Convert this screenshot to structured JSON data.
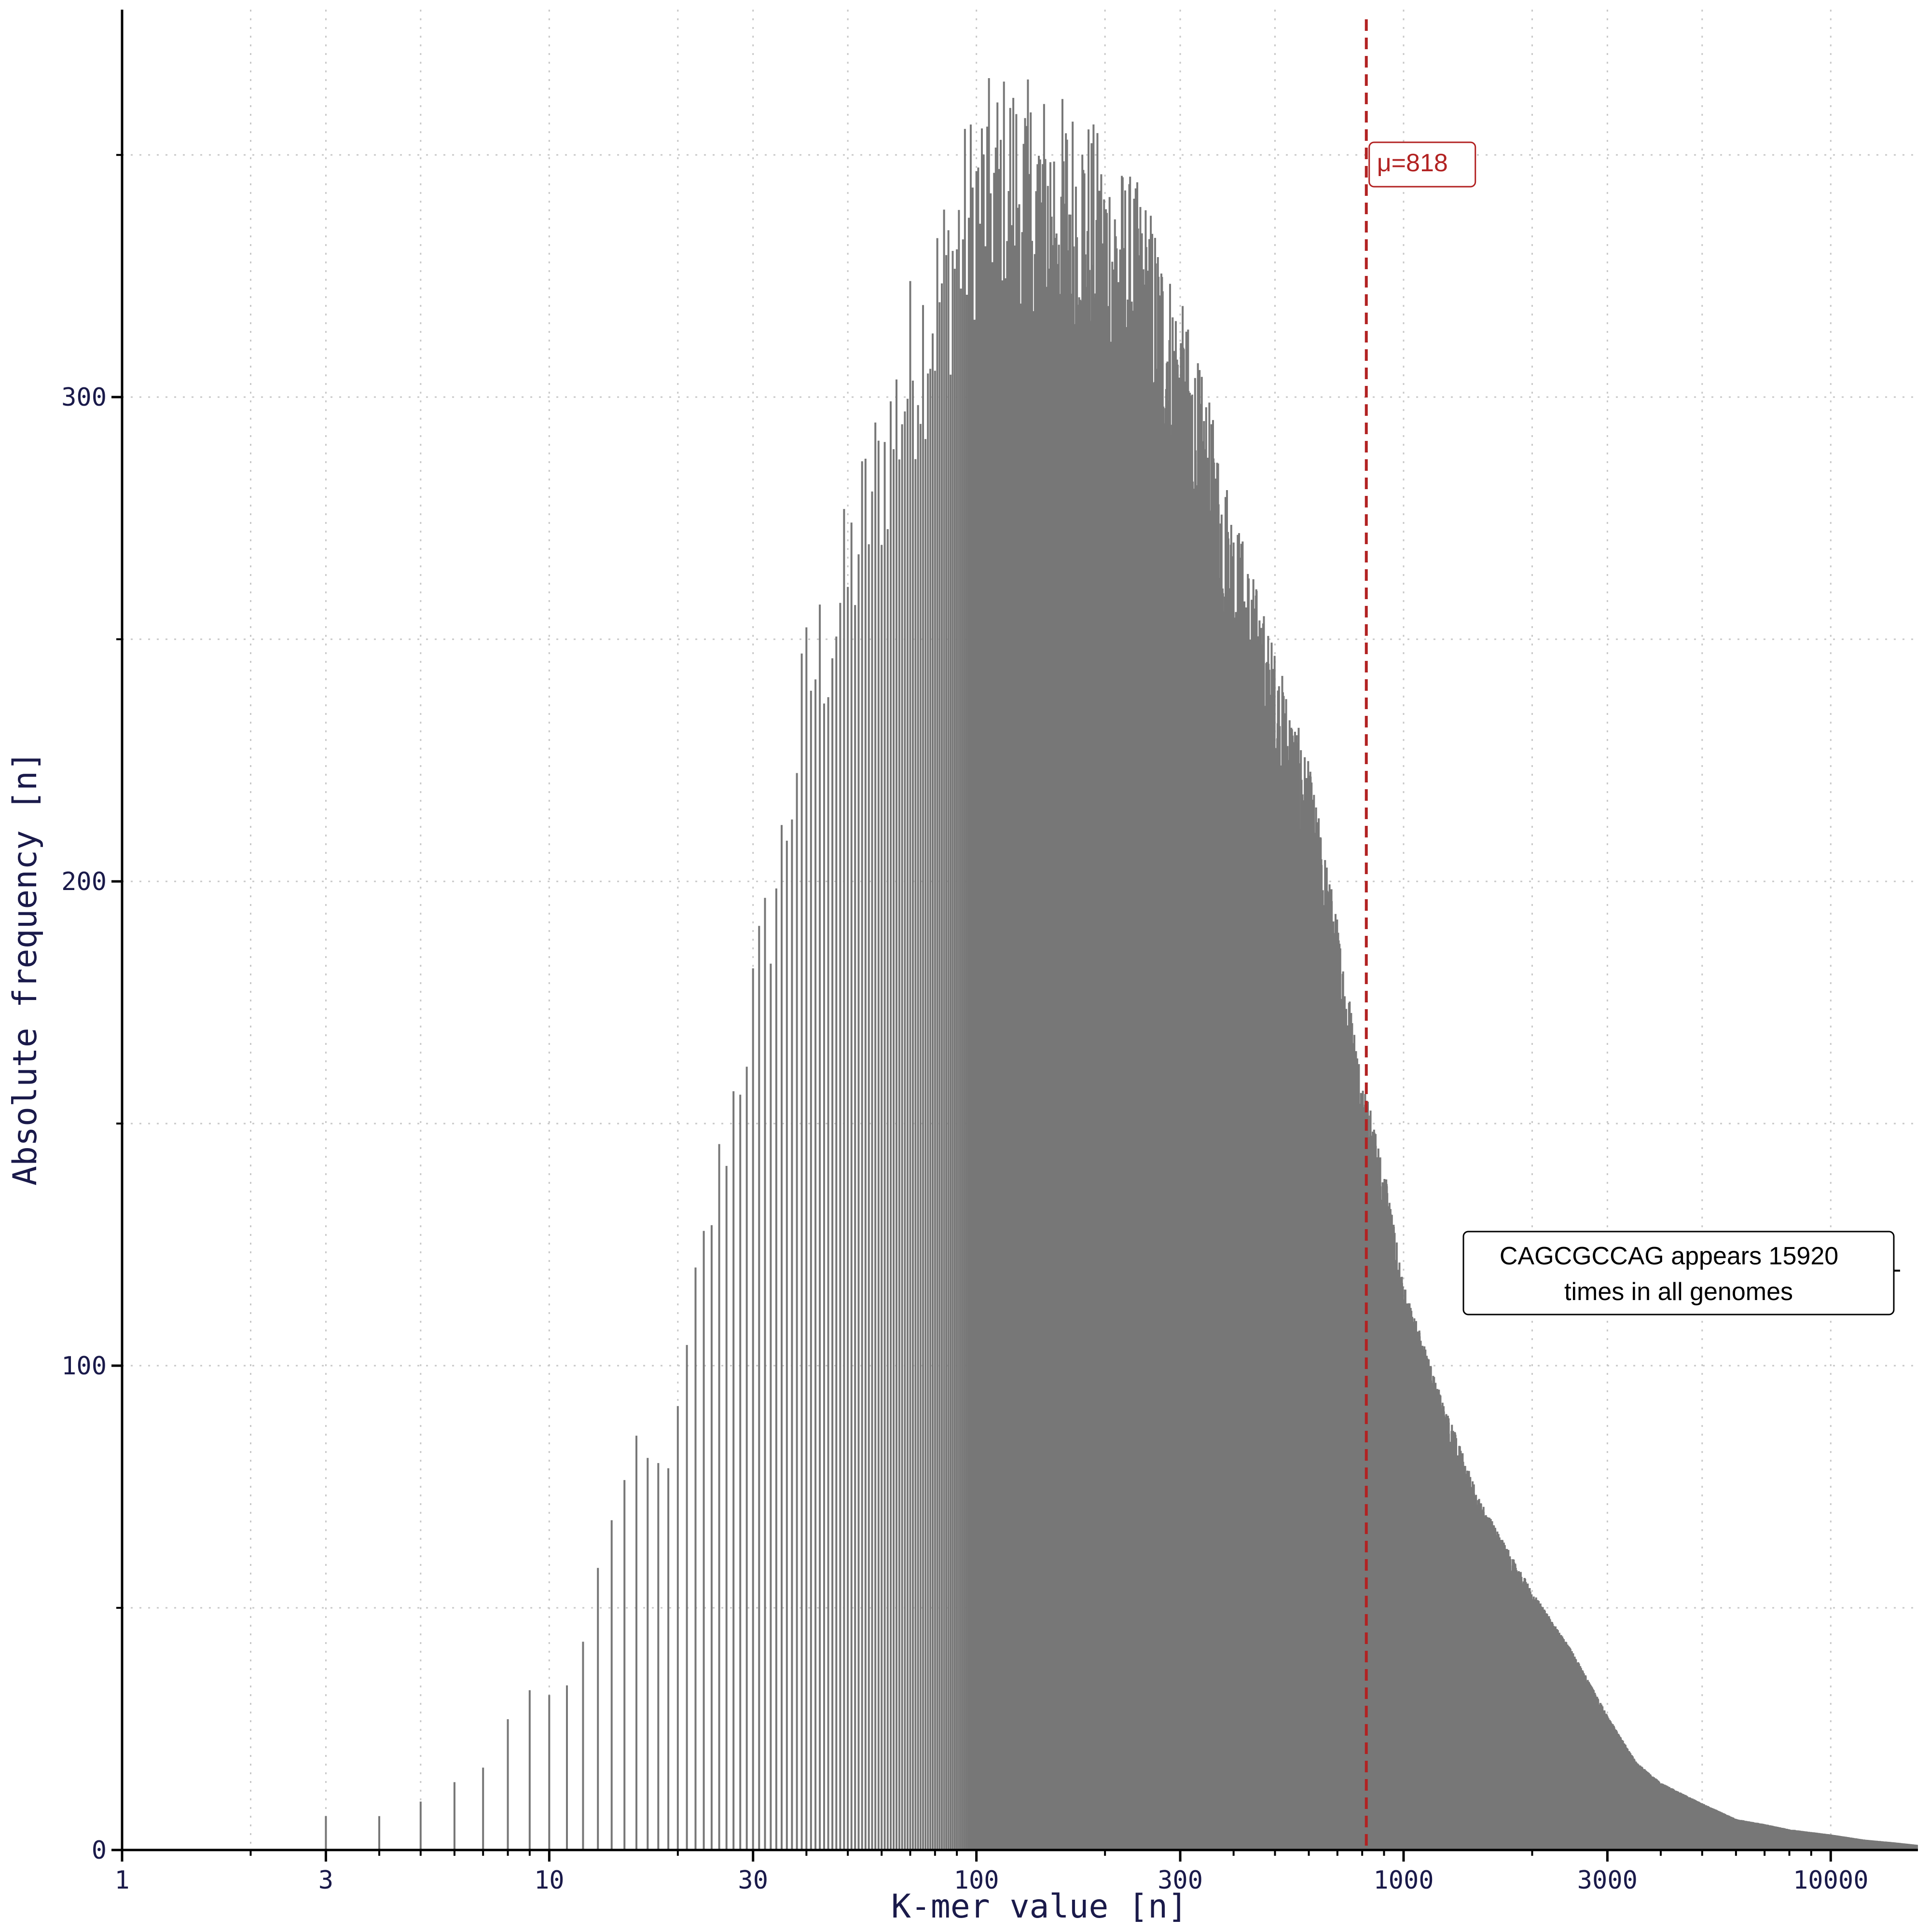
{
  "chart_data": {
    "type": "bar",
    "title": "",
    "xlabel": "K-mer value [n]",
    "ylabel": "Absolute frequency [n]",
    "x_scale": "log",
    "xlim": [
      1,
      16000
    ],
    "ylim": [
      0,
      380
    ],
    "x_ticks": [
      1,
      3,
      10,
      30,
      100,
      300,
      1000,
      3000,
      10000
    ],
    "x_tick_labels": [
      "1",
      "3",
      "10",
      "30",
      "100",
      "300",
      "1000",
      "3000",
      "10000"
    ],
    "y_ticks": [
      0,
      100,
      200,
      300
    ],
    "y_tick_labels": [
      "0",
      "100",
      "200",
      "300"
    ],
    "grid": true,
    "bar_color": "#777777",
    "mean_line": {
      "value": 818,
      "label": "μ=818",
      "color": "#b22222"
    },
    "annotation": {
      "lines": [
        "CAGCGCCAG appears 15920",
        "times in all genomes"
      ]
    },
    "anchors": [
      [
        3,
        7
      ],
      [
        4,
        7
      ],
      [
        5,
        10
      ],
      [
        6,
        14
      ],
      [
        7,
        17
      ],
      [
        8,
        27
      ],
      [
        9,
        33
      ],
      [
        10,
        32
      ],
      [
        11,
        34
      ],
      [
        12,
        43
      ],
      [
        13,
        57
      ],
      [
        14,
        70
      ],
      [
        15,
        75
      ],
      [
        16,
        80
      ],
      [
        18,
        78
      ],
      [
        20,
        87
      ],
      [
        22,
        115
      ],
      [
        25,
        140
      ],
      [
        28,
        162
      ],
      [
        30,
        175
      ],
      [
        35,
        205
      ],
      [
        40,
        240
      ],
      [
        45,
        250
      ],
      [
        50,
        262
      ],
      [
        55,
        275
      ],
      [
        60,
        285
      ],
      [
        70,
        305
      ],
      [
        80,
        318
      ],
      [
        90,
        330
      ],
      [
        100,
        340
      ],
      [
        110,
        343
      ],
      [
        120,
        345
      ],
      [
        130,
        342
      ],
      [
        150,
        340
      ],
      [
        175,
        338
      ],
      [
        200,
        330
      ],
      [
        250,
        320
      ],
      [
        300,
        300
      ],
      [
        350,
        280
      ],
      [
        400,
        260
      ],
      [
        450,
        245
      ],
      [
        500,
        232
      ],
      [
        600,
        210
      ],
      [
        700,
        180
      ],
      [
        800,
        150
      ],
      [
        900,
        132
      ],
      [
        1000,
        110
      ],
      [
        1200,
        90
      ],
      [
        1500,
        68
      ],
      [
        2000,
        50
      ],
      [
        2500,
        38
      ],
      [
        3000,
        26
      ],
      [
        3500,
        17
      ],
      [
        4000,
        13
      ],
      [
        5000,
        9
      ],
      [
        6000,
        6
      ],
      [
        7000,
        5
      ],
      [
        8000,
        4
      ],
      [
        10000,
        3
      ],
      [
        12000,
        2
      ],
      [
        14000,
        1.5
      ],
      [
        15920,
        1
      ]
    ]
  }
}
